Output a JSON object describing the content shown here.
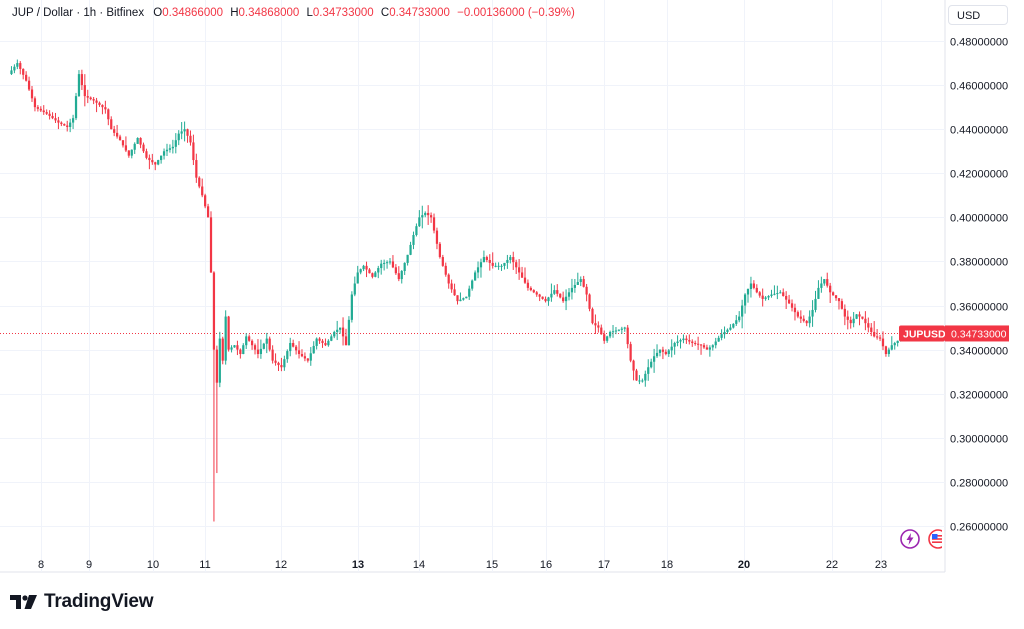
{
  "legend": {
    "symbol": "JUP / Dollar · 1h · Bitfinex",
    "o_label": "O",
    "o": "0.34866000",
    "h_label": "H",
    "h": "0.34868000",
    "l_label": "L",
    "l": "0.34733000",
    "c_label": "C",
    "c": "0.34733000",
    "change": "−0.00136000 (−0.39%)"
  },
  "unit_button": "USD",
  "price_tag": {
    "symbol": "JUPUSD",
    "price": "0.34733000"
  },
  "branding": {
    "name": "TradingView"
  },
  "icons": [
    "lightning-icon",
    "flag-us-icon"
  ],
  "colors": {
    "up": "#22ab94",
    "down": "#f23645",
    "grid": "#f0f3fa",
    "text": "#131722"
  },
  "chart_data": {
    "type": "candlestick",
    "ylim": [
      0.25,
      0.485
    ],
    "y_ticks": [
      "0.48000000",
      "0.46000000",
      "0.44000000",
      "0.42000000",
      "0.40000000",
      "0.38000000",
      "0.36000000",
      "0.34000000",
      "0.32000000",
      "0.30000000",
      "0.28000000",
      "0.26000000"
    ],
    "x_ticks": [
      {
        "label": "8",
        "bold": false
      },
      {
        "label": "9",
        "bold": false
      },
      {
        "label": "10",
        "bold": false
      },
      {
        "label": "11",
        "bold": false
      },
      {
        "label": "12",
        "bold": false
      },
      {
        "label": "13",
        "bold": true
      },
      {
        "label": "14",
        "bold": false
      },
      {
        "label": "15",
        "bold": false
      },
      {
        "label": "16",
        "bold": false
      },
      {
        "label": "17",
        "bold": false
      },
      {
        "label": "18",
        "bold": false
      },
      {
        "label": "20",
        "bold": true
      },
      {
        "label": "22",
        "bold": false
      },
      {
        "label": "23",
        "bold": false
      }
    ],
    "last_price": 0.34733,
    "price_path": [
      [
        0,
        0.465
      ],
      [
        3,
        0.47
      ],
      [
        6,
        0.462
      ],
      [
        9,
        0.45
      ],
      [
        13,
        0.447
      ],
      [
        17,
        0.443
      ],
      [
        20,
        0.441
      ],
      [
        22,
        0.445
      ],
      [
        24,
        0.465
      ],
      [
        26,
        0.455
      ],
      [
        29,
        0.453
      ],
      [
        33,
        0.449
      ],
      [
        35,
        0.44
      ],
      [
        38,
        0.435
      ],
      [
        41,
        0.428
      ],
      [
        44,
        0.436
      ],
      [
        47,
        0.427
      ],
      [
        50,
        0.424
      ],
      [
        53,
        0.43
      ],
      [
        56,
        0.432
      ],
      [
        58,
        0.438
      ],
      [
        60,
        0.44
      ],
      [
        62,
        0.434
      ],
      [
        64,
        0.418
      ],
      [
        66,
        0.41
      ],
      [
        68,
        0.4
      ],
      [
        69,
        0.375
      ],
      [
        70,
        0.34
      ],
      [
        71,
        0.325
      ],
      [
        72,
        0.345
      ],
      [
        73,
        0.335
      ],
      [
        74,
        0.355
      ],
      [
        75,
        0.34
      ],
      [
        77,
        0.342
      ],
      [
        79,
        0.338
      ],
      [
        81,
        0.346
      ],
      [
        83,
        0.342
      ],
      [
        85,
        0.338
      ],
      [
        88,
        0.345
      ],
      [
        90,
        0.335
      ],
      [
        93,
        0.332
      ],
      [
        96,
        0.343
      ],
      [
        99,
        0.338
      ],
      [
        102,
        0.335
      ],
      [
        105,
        0.345
      ],
      [
        108,
        0.342
      ],
      [
        111,
        0.348
      ],
      [
        113,
        0.35
      ],
      [
        115,
        0.342
      ],
      [
        117,
        0.365
      ],
      [
        119,
        0.375
      ],
      [
        121,
        0.378
      ],
      [
        124,
        0.373
      ],
      [
        127,
        0.379
      ],
      [
        130,
        0.38
      ],
      [
        133,
        0.372
      ],
      [
        136,
        0.383
      ],
      [
        138,
        0.392
      ],
      [
        140,
        0.4
      ],
      [
        142,
        0.402
      ],
      [
        144,
        0.4
      ],
      [
        147,
        0.382
      ],
      [
        150,
        0.37
      ],
      [
        153,
        0.362
      ],
      [
        156,
        0.364
      ],
      [
        159,
        0.375
      ],
      [
        162,
        0.382
      ],
      [
        165,
        0.378
      ],
      [
        168,
        0.378
      ],
      [
        171,
        0.382
      ],
      [
        174,
        0.375
      ],
      [
        177,
        0.368
      ],
      [
        180,
        0.365
      ],
      [
        183,
        0.362
      ],
      [
        186,
        0.367
      ],
      [
        189,
        0.362
      ],
      [
        192,
        0.368
      ],
      [
        195,
        0.372
      ],
      [
        197,
        0.365
      ],
      [
        199,
        0.352
      ],
      [
        201,
        0.35
      ],
      [
        203,
        0.344
      ],
      [
        205,
        0.348
      ],
      [
        208,
        0.349
      ],
      [
        210,
        0.35
      ],
      [
        212,
        0.335
      ],
      [
        214,
        0.326
      ],
      [
        216,
        0.326
      ],
      [
        218,
        0.332
      ],
      [
        220,
        0.337
      ],
      [
        222,
        0.34
      ],
      [
        224,
        0.338
      ],
      [
        227,
        0.343
      ],
      [
        230,
        0.345
      ],
      [
        233,
        0.343
      ],
      [
        236,
        0.342
      ],
      [
        238,
        0.34
      ],
      [
        240,
        0.342
      ],
      [
        243,
        0.347
      ],
      [
        246,
        0.35
      ],
      [
        249,
        0.355
      ],
      [
        251,
        0.365
      ],
      [
        253,
        0.37
      ],
      [
        255,
        0.366
      ],
      [
        257,
        0.363
      ],
      [
        260,
        0.365
      ],
      [
        263,
        0.366
      ],
      [
        266,
        0.361
      ],
      [
        269,
        0.355
      ],
      [
        272,
        0.352
      ],
      [
        274,
        0.358
      ],
      [
        276,
        0.368
      ],
      [
        278,
        0.372
      ],
      [
        280,
        0.366
      ],
      [
        283,
        0.362
      ],
      [
        285,
        0.355
      ],
      [
        287,
        0.352
      ],
      [
        289,
        0.356
      ],
      [
        291,
        0.354
      ],
      [
        293,
        0.35
      ],
      [
        295,
        0.346
      ],
      [
        297,
        0.345
      ],
      [
        299,
        0.338
      ],
      [
        301,
        0.342
      ],
      [
        303,
        0.344
      ],
      [
        305,
        0.347
      ]
    ]
  }
}
